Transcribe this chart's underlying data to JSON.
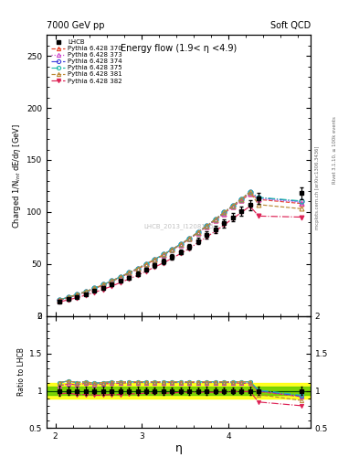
{
  "title_top": "7000 GeV pp",
  "title_right": "Soft QCD",
  "plot_title": "Energy flow (1.9< η <4.9)",
  "xlabel": "η",
  "ylabel_main": "Charged 1/N_int dE/dη [GeV]",
  "ylabel_ratio": "Ratio to LHCB",
  "watermark": "LHCB_2013_I1208105",
  "right_label1": "Rivet 3.1.10, ≥ 100k events",
  "right_label2": "mcplots.cern.ch [arXiv:1306.3436]",
  "lhcb_eta": [
    2.05,
    2.15,
    2.25,
    2.35,
    2.45,
    2.55,
    2.65,
    2.75,
    2.85,
    2.95,
    3.05,
    3.15,
    3.25,
    3.35,
    3.45,
    3.55,
    3.65,
    3.75,
    3.85,
    3.95,
    4.05,
    4.15,
    4.25,
    4.35
  ],
  "lhcb_last_eta": 4.85,
  "lhcb_values": [
    14.0,
    16.0,
    18.5,
    21.0,
    24.0,
    27.0,
    30.0,
    33.5,
    37.0,
    40.5,
    44.5,
    48.5,
    52.5,
    57.0,
    61.5,
    66.5,
    72.0,
    77.5,
    83.0,
    89.0,
    95.0,
    100.5,
    106.5,
    113.0
  ],
  "lhcb_last_value": 118.0,
  "lhcb_errors": [
    1.0,
    1.0,
    1.0,
    1.0,
    1.0,
    1.5,
    1.5,
    1.5,
    1.5,
    2.0,
    2.0,
    2.0,
    2.5,
    2.5,
    2.5,
    3.0,
    3.0,
    3.5,
    3.5,
    4.0,
    4.0,
    4.5,
    5.0,
    5.5
  ],
  "lhcb_last_error": 6.0,
  "series": [
    {
      "label": "Pythia 6.428 370",
      "color": "#e8452a",
      "linestyle": "--",
      "marker": "^",
      "filled": false,
      "values": [
        15.0,
        17.5,
        20.0,
        23.0,
        26.0,
        29.5,
        33.0,
        37.0,
        41.0,
        45.0,
        49.5,
        54.0,
        58.5,
        63.5,
        68.5,
        74.0,
        80.0,
        86.0,
        92.0,
        98.5,
        105.0,
        111.0,
        117.5,
        112.0,
        108.0
      ]
    },
    {
      "label": "Pythia 6.428 373",
      "color": "#cc44cc",
      "linestyle": ":",
      "marker": "^",
      "filled": false,
      "values": [
        15.0,
        17.5,
        20.0,
        23.0,
        26.0,
        29.5,
        33.0,
        37.0,
        41.0,
        45.0,
        49.5,
        54.0,
        58.5,
        63.5,
        68.5,
        74.0,
        80.0,
        86.0,
        92.0,
        98.5,
        105.0,
        111.0,
        117.5,
        112.5,
        109.0
      ]
    },
    {
      "label": "Pythia 6.428 374",
      "color": "#4444dd",
      "linestyle": "-.",
      "marker": "o",
      "filled": false,
      "values": [
        15.5,
        18.0,
        20.5,
        23.5,
        26.5,
        30.0,
        33.5,
        37.5,
        41.5,
        45.5,
        50.0,
        54.5,
        59.0,
        64.0,
        69.0,
        74.5,
        80.5,
        86.5,
        93.0,
        99.5,
        106.0,
        112.5,
        119.0,
        113.5,
        110.0
      ]
    },
    {
      "label": "Pythia 6.428 375",
      "color": "#22bbaa",
      "linestyle": "-.",
      "marker": "o",
      "filled": false,
      "values": [
        15.5,
        18.0,
        20.5,
        23.5,
        26.5,
        30.0,
        33.5,
        37.5,
        41.5,
        45.5,
        50.0,
        54.5,
        59.0,
        64.0,
        69.0,
        74.5,
        80.5,
        86.5,
        93.0,
        99.5,
        106.0,
        112.5,
        119.0,
        114.0,
        110.5
      ]
    },
    {
      "label": "Pythia 6.428 381",
      "color": "#bb8833",
      "linestyle": "--",
      "marker": "^",
      "filled": false,
      "values": [
        15.5,
        18.0,
        20.5,
        23.5,
        26.5,
        30.0,
        33.5,
        37.5,
        41.5,
        45.5,
        50.0,
        54.5,
        59.0,
        64.0,
        69.0,
        74.5,
        80.5,
        86.5,
        93.0,
        99.5,
        106.0,
        112.5,
        119.0,
        107.0,
        103.0
      ]
    },
    {
      "label": "Pythia 6.428 382",
      "color": "#dd2255",
      "linestyle": "-.",
      "marker": "v",
      "filled": true,
      "values": [
        13.5,
        15.5,
        17.5,
        20.0,
        22.5,
        25.5,
        28.5,
        32.0,
        35.5,
        39.0,
        43.0,
        47.0,
        51.0,
        55.5,
        60.0,
        65.0,
        70.5,
        76.0,
        81.5,
        87.5,
        93.5,
        99.5,
        105.5,
        96.0,
        95.0
      ]
    }
  ],
  "series_eta": [
    2.05,
    2.15,
    2.25,
    2.35,
    2.45,
    2.55,
    2.65,
    2.75,
    2.85,
    2.95,
    3.05,
    3.15,
    3.25,
    3.35,
    3.45,
    3.55,
    3.65,
    3.75,
    3.85,
    3.95,
    4.05,
    4.15,
    4.25,
    4.35,
    4.85
  ],
  "ratio_lhcb_eta": [
    2.05,
    2.15,
    2.25,
    2.35,
    2.45,
    2.55,
    2.65,
    2.75,
    2.85,
    2.95,
    3.05,
    3.15,
    3.25,
    3.35,
    3.45,
    3.55,
    3.65,
    3.75,
    3.85,
    3.95,
    4.05,
    4.15,
    4.25,
    4.35,
    4.85
  ],
  "ratio_lhcb_errors": [
    0.07,
    0.06,
    0.05,
    0.05,
    0.04,
    0.06,
    0.05,
    0.04,
    0.04,
    0.05,
    0.04,
    0.04,
    0.05,
    0.04,
    0.04,
    0.05,
    0.04,
    0.05,
    0.04,
    0.04,
    0.04,
    0.04,
    0.05,
    0.05,
    0.05
  ],
  "ratio_series": [
    {
      "color": "#e8452a",
      "linestyle": "--",
      "marker": "^",
      "filled": false,
      "values": [
        1.07,
        1.09,
        1.08,
        1.1,
        1.08,
        1.09,
        1.1,
        1.1,
        1.11,
        1.11,
        1.11,
        1.11,
        1.11,
        1.11,
        1.11,
        1.11,
        1.11,
        1.11,
        1.11,
        1.11,
        1.11,
        1.1,
        1.1,
        0.99,
        0.92
      ]
    },
    {
      "color": "#cc44cc",
      "linestyle": ":",
      "marker": "^",
      "filled": false,
      "values": [
        1.07,
        1.09,
        1.08,
        1.1,
        1.08,
        1.09,
        1.1,
        1.1,
        1.11,
        1.11,
        1.11,
        1.11,
        1.11,
        1.11,
        1.11,
        1.11,
        1.11,
        1.11,
        1.11,
        1.11,
        1.11,
        1.1,
        1.1,
        1.0,
        0.92
      ]
    },
    {
      "color": "#4444dd",
      "linestyle": "-.",
      "marker": "o",
      "filled": false,
      "values": [
        1.11,
        1.13,
        1.11,
        1.12,
        1.1,
        1.11,
        1.12,
        1.12,
        1.12,
        1.12,
        1.12,
        1.12,
        1.12,
        1.12,
        1.12,
        1.12,
        1.12,
        1.12,
        1.12,
        1.12,
        1.12,
        1.12,
        1.12,
        1.0,
        0.93
      ]
    },
    {
      "color": "#22bbaa",
      "linestyle": "-.",
      "marker": "o",
      "filled": false,
      "values": [
        1.11,
        1.13,
        1.11,
        1.12,
        1.1,
        1.11,
        1.12,
        1.12,
        1.12,
        1.12,
        1.12,
        1.12,
        1.12,
        1.12,
        1.12,
        1.12,
        1.12,
        1.12,
        1.12,
        1.12,
        1.12,
        1.12,
        1.12,
        1.01,
        0.94
      ]
    },
    {
      "color": "#bb8833",
      "linestyle": "--",
      "marker": "^",
      "filled": false,
      "values": [
        1.11,
        1.13,
        1.11,
        1.12,
        1.1,
        1.11,
        1.12,
        1.12,
        1.12,
        1.12,
        1.12,
        1.12,
        1.12,
        1.12,
        1.12,
        1.12,
        1.12,
        1.12,
        1.12,
        1.12,
        1.12,
        1.12,
        1.12,
        0.95,
        0.87
      ]
    },
    {
      "color": "#dd2255",
      "linestyle": "-.",
      "marker": "v",
      "filled": true,
      "values": [
        0.96,
        0.97,
        0.95,
        0.95,
        0.94,
        0.94,
        0.95,
        0.95,
        0.96,
        0.96,
        0.97,
        0.97,
        0.97,
        0.97,
        0.98,
        0.98,
        0.98,
        0.98,
        0.98,
        0.98,
        0.99,
        0.99,
        0.99,
        0.85,
        0.8
      ]
    }
  ],
  "ylim_main": [
    0,
    270
  ],
  "ylim_ratio": [
    0.5,
    2.0
  ],
  "xlim": [
    1.9,
    4.95
  ],
  "ratio_band_yellow": 0.1,
  "ratio_band_green": 0.05
}
